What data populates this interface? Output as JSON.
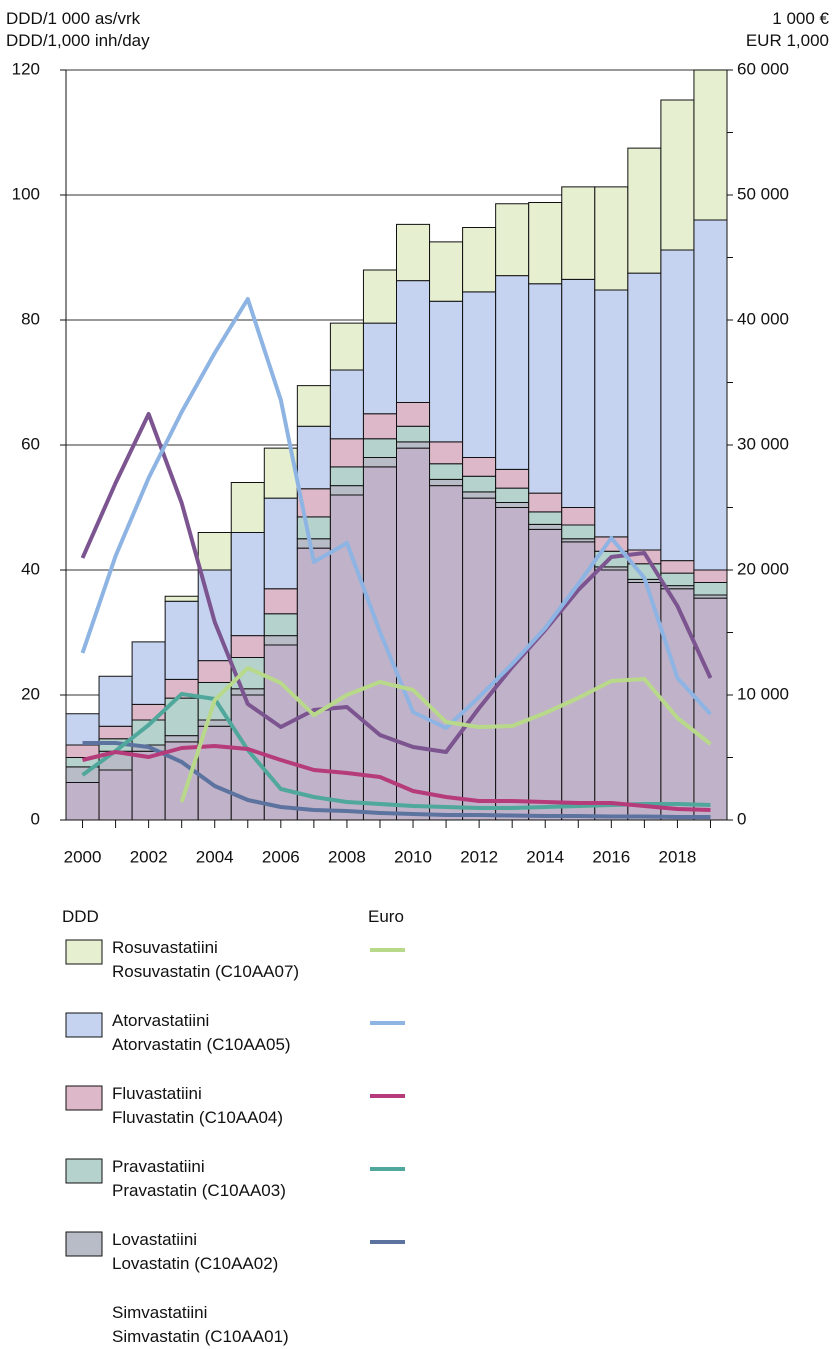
{
  "chart_data": {
    "type": "bar",
    "y_label": "DDD/1 000 as/vrk\nDDD/1,000 inh/day",
    "y2_label": "1 000 €\nEUR 1,000",
    "legend_bar_title": "DDD",
    "legend_line_title": "Euro",
    "categories": [
      "2000",
      null,
      "2002",
      null,
      "2004",
      null,
      "2006",
      null,
      "2008",
      null,
      "2010",
      null,
      "2012",
      null,
      "2014",
      null,
      "2016",
      null,
      "2018",
      null
    ],
    "ylim": [
      0,
      120
    ],
    "yticks": [
      0,
      20,
      40,
      60,
      80,
      100,
      120
    ],
    "y2lim": [
      0,
      60000
    ],
    "y2ticks": [
      0,
      {
        "value": 10000,
        "label": "10 000"
      },
      {
        "value": 20000,
        "label": "20 000"
      },
      {
        "value": 30000,
        "label": "30 000"
      },
      {
        "value": 40000,
        "label": "40 000"
      },
      {
        "value": 50000,
        "label": "50 000"
      },
      {
        "value": 60000,
        "label": "60 000"
      }
    ],
    "grid": true,
    "series": [
      {
        "name": "Simvastatiini\nSimvastatin (C10AA01)",
        "color": "#c0b2c8",
        "values": [
          6,
          8,
          11,
          12.5,
          15,
          20,
          28,
          43.5,
          52,
          56.5,
          59.5,
          53.5,
          51.5,
          50,
          46.5,
          44.5,
          40,
          38,
          37,
          35.5
        ]
      },
      {
        "name": "Lovastatiini\nLovastatin (C10AA02)",
        "color": "#b8bcc6",
        "values": [
          2.5,
          3,
          1,
          1,
          1,
          1,
          1.5,
          1.5,
          1.5,
          1.5,
          1,
          1,
          1,
          0.8,
          0.8,
          0.5,
          0.5,
          0.5,
          0.5,
          0.5
        ]
      },
      {
        "name": "Pravastatiini\nPravastatin (C10AA03)",
        "color": "#b5d2cc",
        "values": [
          1.5,
          2,
          4,
          6,
          6,
          5,
          3.5,
          3.5,
          3,
          3,
          2.5,
          2.5,
          2.5,
          2.3,
          2,
          2.2,
          2.5,
          2.5,
          2,
          2
        ]
      },
      {
        "name": "Fluvastatiini\nFluvastatin (C10AA04)",
        "color": "#ddb8c8",
        "values": [
          2,
          2,
          2.5,
          3,
          3.5,
          3.5,
          4,
          4.5,
          4.5,
          4,
          3.8,
          3.5,
          3,
          3,
          3,
          2.8,
          2.3,
          2.2,
          2,
          2
        ]
      },
      {
        "name": "Atorvastatiini\nAtorvastatin (C10AA05)",
        "color": "#c5d3f0",
        "values": [
          5,
          8,
          10,
          12.5,
          14.5,
          16.5,
          14.5,
          10,
          11,
          14.5,
          19.5,
          22.5,
          26.5,
          31,
          33.5,
          36.5,
          39.5,
          44.3,
          49.7,
          56
        ]
      },
      {
        "name": "Rosuvastatiini\nRosuvastatin (C10AA07)",
        "color": "#e6efd0",
        "values": [
          0,
          0,
          0,
          0.8,
          6,
          8,
          8,
          6.5,
          7.5,
          8.5,
          9,
          9.5,
          10.3,
          11.5,
          13,
          14.8,
          16.5,
          20,
          24,
          24
        ]
      },
      {
        "type": "line",
        "axis": "y2",
        "color": "#7b5490",
        "values": [
          20960,
          26960,
          32480,
          25360,
          15840,
          9280,
          7440,
          8800,
          9040,
          6800,
          5840,
          5440,
          8960,
          12240,
          15200,
          18400,
          21040,
          21360,
          17120,
          11360
        ]
      },
      {
        "type": "line",
        "axis": "y2",
        "color": "#5c73a0",
        "values": [
          6160,
          6160,
          5840,
          4640,
          2720,
          1600,
          1040,
          800,
          720,
          560,
          480,
          400,
          400,
          360,
          320,
          320,
          280,
          280,
          240,
          240
        ]
      },
      {
        "type": "line",
        "axis": "y2",
        "color": "#4fa89b",
        "values": [
          3600,
          5520,
          7600,
          10080,
          9680,
          5600,
          2480,
          1840,
          1440,
          1280,
          1120,
          1040,
          960,
          960,
          1040,
          1120,
          1200,
          1280,
          1280,
          1200
        ]
      },
      {
        "type": "line",
        "axis": "y2",
        "color": "#b63b7a",
        "values": [
          4800,
          5440,
          5040,
          5760,
          5920,
          5680,
          4800,
          4000,
          3760,
          3440,
          2320,
          1840,
          1520,
          1520,
          1440,
          1360,
          1360,
          1120,
          880,
          800
        ]
      },
      {
        "type": "line",
        "axis": "y2",
        "color": "#8eb4e3",
        "values": [
          13360,
          21120,
          27360,
          32640,
          37360,
          41680,
          33600,
          20640,
          22160,
          15040,
          8640,
          7360,
          9840,
          12480,
          15360,
          18880,
          22560,
          19360,
          11360,
          8480
        ]
      },
      {
        "type": "line",
        "axis": "y2",
        "color": "#b9d98a",
        "values": [
          null,
          null,
          null,
          1440,
          9600,
          12160,
          10960,
          8400,
          10000,
          11040,
          10400,
          7840,
          7440,
          7520,
          8560,
          9760,
          11120,
          11280,
          8160,
          6080
        ]
      }
    ]
  }
}
